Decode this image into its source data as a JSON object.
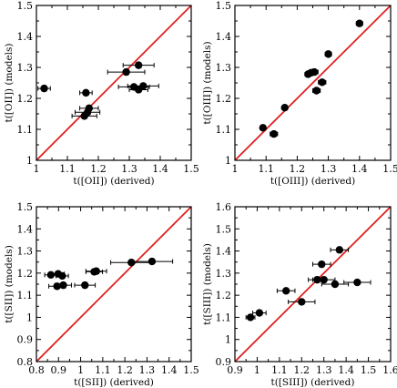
{
  "colors": {
    "diagonal": "#e02020",
    "points": "#000000",
    "frame": "#000000"
  },
  "chart_data": [
    {
      "type": "scatter",
      "xlabel": "t([OII]) (derived)",
      "ylabel": "t([OII]) (models)",
      "xlim": [
        1.0,
        1.5
      ],
      "ylim": [
        1.0,
        1.5
      ],
      "xticks": [
        "1",
        "1.1",
        "1.2",
        "1.3",
        "1.4",
        "1.5"
      ],
      "yticks": [
        "1",
        "1.1",
        "1.2",
        "1.3",
        "1.4",
        "1.5"
      ],
      "diagonal": true,
      "points": [
        {
          "x": 1.025,
          "y": 1.232,
          "xerr": 0.02
        },
        {
          "x": 1.16,
          "y": 1.218,
          "xerr": 0.02
        },
        {
          "x": 1.165,
          "y": 1.155,
          "xerr": 0.04
        },
        {
          "x": 1.17,
          "y": 1.168,
          "xerr": 0.03
        },
        {
          "x": 1.155,
          "y": 1.143,
          "xerr": 0.04
        },
        {
          "x": 1.29,
          "y": 1.285,
          "xerr": 0.06
        },
        {
          "x": 1.33,
          "y": 1.307,
          "xerr": 0.05
        },
        {
          "x": 1.315,
          "y": 1.237,
          "xerr": 0.05
        },
        {
          "x": 1.33,
          "y": 1.228,
          "xerr": 0.03
        },
        {
          "x": 1.345,
          "y": 1.24,
          "xerr": 0.05
        }
      ]
    },
    {
      "type": "scatter",
      "xlabel": "t([OIII]) (derived)",
      "ylabel": "t([OIII]) (models)",
      "xlim": [
        1.0,
        1.5
      ],
      "ylim": [
        1.0,
        1.5
      ],
      "xticks": [
        "1",
        "1.1",
        "1.2",
        "1.3",
        "1.4",
        "1.5"
      ],
      "yticks": [
        "1",
        "1.1",
        "1.2",
        "1.3",
        "1.4",
        "1.5"
      ],
      "diagonal": true,
      "points": [
        {
          "x": 1.09,
          "y": 1.105,
          "xerr": 0.005
        },
        {
          "x": 1.125,
          "y": 1.085,
          "xerr": 0.012
        },
        {
          "x": 1.16,
          "y": 1.17,
          "xerr": 0.006
        },
        {
          "x": 1.235,
          "y": 1.278,
          "xerr": 0.01
        },
        {
          "x": 1.245,
          "y": 1.283,
          "xerr": 0.012
        },
        {
          "x": 1.255,
          "y": 1.285,
          "xerr": 0.012
        },
        {
          "x": 1.262,
          "y": 1.225,
          "xerr": 0.012
        },
        {
          "x": 1.28,
          "y": 1.252,
          "xerr": 0.012
        },
        {
          "x": 1.3,
          "y": 1.343,
          "xerr": 0.01
        },
        {
          "x": 1.4,
          "y": 1.442,
          "xerr": 0.01
        }
      ]
    },
    {
      "type": "scatter",
      "xlabel": "t([SII]) (derived)",
      "ylabel": "t([SII]) (models)",
      "xlim": [
        0.75,
        1.5
      ],
      "ylim": [
        0.75,
        1.5
      ],
      "xticks": [
        "0.8",
        "0.9",
        "1",
        "1.1",
        "1.2",
        "1.3",
        "1.4",
        "1.5"
      ],
      "yticks": [
        "0.8",
        "0.9",
        "1",
        "1.1",
        "1.2",
        "1.3",
        "1.4",
        "1.5"
      ],
      "diagonal": true,
      "points": [
        {
          "x": 0.82,
          "y": 1.17,
          "xerr": 0.03
        },
        {
          "x": 0.855,
          "y": 1.175,
          "xerr": 0.03
        },
        {
          "x": 0.875,
          "y": 1.165,
          "xerr": 0.03
        },
        {
          "x": 0.85,
          "y": 1.115,
          "xerr": 0.04
        },
        {
          "x": 0.88,
          "y": 1.12,
          "xerr": 0.04
        },
        {
          "x": 0.985,
          "y": 1.12,
          "xerr": 0.05
        },
        {
          "x": 1.03,
          "y": 1.185,
          "xerr": 0.04
        },
        {
          "x": 1.04,
          "y": 1.188,
          "xerr": 0.05
        },
        {
          "x": 1.21,
          "y": 1.23,
          "xerr": 0.1
        },
        {
          "x": 1.31,
          "y": 1.235,
          "xerr": 0.1
        }
      ]
    },
    {
      "type": "scatter",
      "xlabel": "t([SIII]) (derived)",
      "ylabel": "t([SIII]) (models)",
      "xlim": [
        0.9,
        1.6
      ],
      "ylim": [
        0.9,
        1.6
      ],
      "xticks": [
        "0.9",
        "1",
        "1.1",
        "1.2",
        "1.3",
        "1.4",
        "1.5",
        "1.6"
      ],
      "yticks": [
        "0.9",
        "1",
        "1.1",
        "1.2",
        "1.3",
        "1.4",
        "1.5",
        "1.6"
      ],
      "diagonal": true,
      "points": [
        {
          "x": 0.97,
          "y": 1.1,
          "xerr": 0.02
        },
        {
          "x": 1.01,
          "y": 1.12,
          "xerr": 0.03
        },
        {
          "x": 1.13,
          "y": 1.22,
          "xerr": 0.04
        },
        {
          "x": 1.2,
          "y": 1.17,
          "xerr": 0.06
        },
        {
          "x": 1.27,
          "y": 1.27,
          "xerr": 0.04
        },
        {
          "x": 1.3,
          "y": 1.27,
          "xerr": 0.05
        },
        {
          "x": 1.29,
          "y": 1.34,
          "xerr": 0.04
        },
        {
          "x": 1.35,
          "y": 1.25,
          "xerr": 0.06
        },
        {
          "x": 1.37,
          "y": 1.405,
          "xerr": 0.04
        },
        {
          "x": 1.45,
          "y": 1.258,
          "xerr": 0.06
        }
      ]
    }
  ]
}
